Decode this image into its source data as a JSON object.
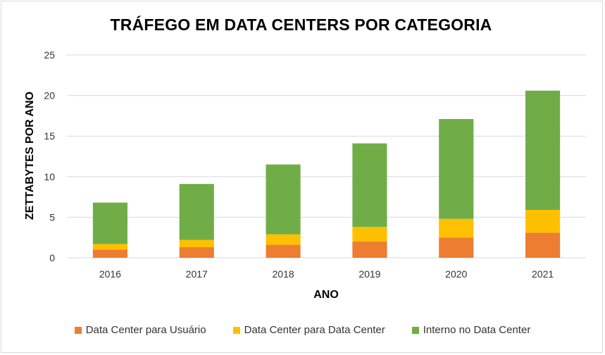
{
  "chart_data": {
    "type": "bar",
    "stacked": true,
    "title": "TRÁFEGO EM DATA CENTERS POR CATEGORIA",
    "xlabel": "ANO",
    "ylabel": "ZETTABYTES POR ANO",
    "ylim": [
      0,
      25
    ],
    "yticks": [
      0,
      5,
      10,
      15,
      20,
      25
    ],
    "grid": true,
    "legend_position": "bottom",
    "categories": [
      "2016",
      "2017",
      "2018",
      "2019",
      "2020",
      "2021"
    ],
    "series": [
      {
        "name": "Data Center para Usuário",
        "color": "#ED7D31",
        "values": [
          1.0,
          1.3,
          1.6,
          2.0,
          2.5,
          3.1
        ]
      },
      {
        "name": "Data Center para Data Center",
        "color": "#FFC000",
        "values": [
          0.7,
          0.9,
          1.3,
          1.8,
          2.3,
          2.8
        ]
      },
      {
        "name": "Interno no Data Center",
        "color": "#70AD47",
        "values": [
          5.1,
          6.9,
          8.6,
          10.3,
          12.3,
          14.7
        ]
      }
    ]
  }
}
